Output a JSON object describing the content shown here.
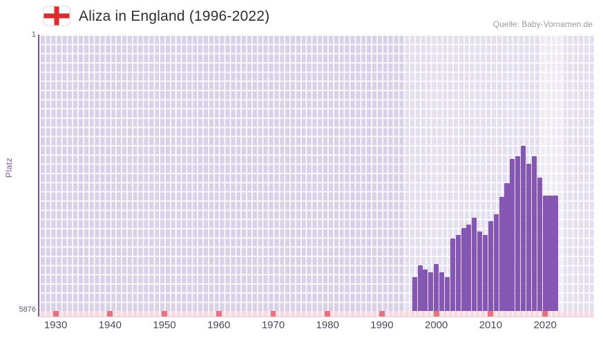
{
  "header": {
    "title": "Aliza in England (1996-2022)",
    "source": "Quelle: Baby-Vornamen.de"
  },
  "icons": {
    "flag": "england-flag-icon"
  },
  "colors": {
    "bar": "#8657b2",
    "plot_background": "#d8d1e8",
    "grid_line": "#ffffff",
    "y_axis": "#7b4fad",
    "strip_background": "#f7dae2",
    "decade_marker": "#e4737f",
    "flag_cross_red": "#dd2c2f",
    "title_text": "#2e2e2e",
    "source_text": "#9b9b9b"
  },
  "chart_data": {
    "type": "bar",
    "title": "Aliza in England (1996-2022)",
    "xlabel": "",
    "ylabel": "Platz",
    "y_axis": {
      "top_label": "1",
      "bottom_label": "5876"
    },
    "ylim": [
      1,
      5876
    ],
    "y_inverted": true,
    "grid": true,
    "legend": false,
    "x_range": [
      1927,
      2029
    ],
    "x_ticks": [
      1930,
      1940,
      1950,
      1960,
      1970,
      1980,
      1990,
      2000,
      2010,
      2020
    ],
    "highlight_bands": [
      {
        "from": 1994,
        "to": 2029,
        "opacity": 0.3
      },
      {
        "from": 2019,
        "to": 2023.5,
        "opacity": 0.38
      }
    ],
    "x": [
      1996,
      1997,
      1998,
      1999,
      2000,
      2001,
      2002,
      2003,
      2004,
      2005,
      2006,
      2007,
      2008,
      2009,
      2010,
      2011,
      2012,
      2013,
      2014,
      2015,
      2016,
      2017,
      2018,
      2019,
      2020,
      2021,
      2022
    ],
    "values": [
      5150,
      4900,
      4990,
      5060,
      4880,
      5060,
      5150,
      4330,
      4260,
      4110,
      4040,
      3890,
      4180,
      4260,
      3960,
      3820,
      3450,
      3160,
      2650,
      2590,
      2360,
      2750,
      2590,
      3040,
      3420,
      3420,
      3420
    ]
  }
}
